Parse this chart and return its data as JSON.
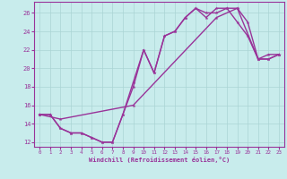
{
  "title": "",
  "xlabel": "Windchill (Refroidissement éolien,°C)",
  "bg_color": "#c8ecec",
  "line_color": "#993399",
  "grid_color": "#aad4d4",
  "xlim": [
    -0.5,
    23.5
  ],
  "ylim": [
    11.5,
    27.2
  ],
  "xticks": [
    0,
    1,
    2,
    3,
    4,
    5,
    6,
    7,
    8,
    9,
    10,
    11,
    12,
    13,
    14,
    15,
    16,
    17,
    18,
    19,
    20,
    21,
    22,
    23
  ],
  "yticks": [
    12,
    14,
    16,
    18,
    20,
    22,
    24,
    26
  ],
  "line1_x": [
    0,
    1,
    2,
    3,
    4,
    5,
    6,
    7,
    8,
    9,
    10,
    11,
    12,
    13,
    14,
    15,
    16,
    17,
    18,
    19,
    20,
    21,
    22,
    23
  ],
  "line1_y": [
    15,
    15,
    13.5,
    13,
    13,
    12.5,
    12,
    12,
    15,
    18.5,
    22,
    19.5,
    23.5,
    24,
    25.5,
    26.5,
    26,
    26,
    26.5,
    25,
    23.5,
    21,
    21.5,
    21.5
  ],
  "line2_x": [
    0,
    1,
    2,
    3,
    4,
    5,
    6,
    7,
    8,
    9,
    10,
    11,
    12,
    13,
    14,
    15,
    16,
    17,
    18,
    19,
    20,
    21,
    22,
    23
  ],
  "line2_y": [
    15,
    15,
    13.5,
    13,
    13,
    12.5,
    12,
    12,
    15,
    18.0,
    22,
    19.5,
    23.5,
    24,
    25.5,
    26.5,
    25.5,
    26.5,
    26.5,
    26.5,
    25,
    21,
    21,
    21.5
  ],
  "line3_x": [
    0,
    2,
    9,
    17,
    19,
    21,
    22,
    23
  ],
  "line3_y": [
    15,
    14.5,
    16,
    25.5,
    26.5,
    21,
    21,
    21.5
  ],
  "marker": "*",
  "markersize": 3,
  "linewidth": 1.0
}
